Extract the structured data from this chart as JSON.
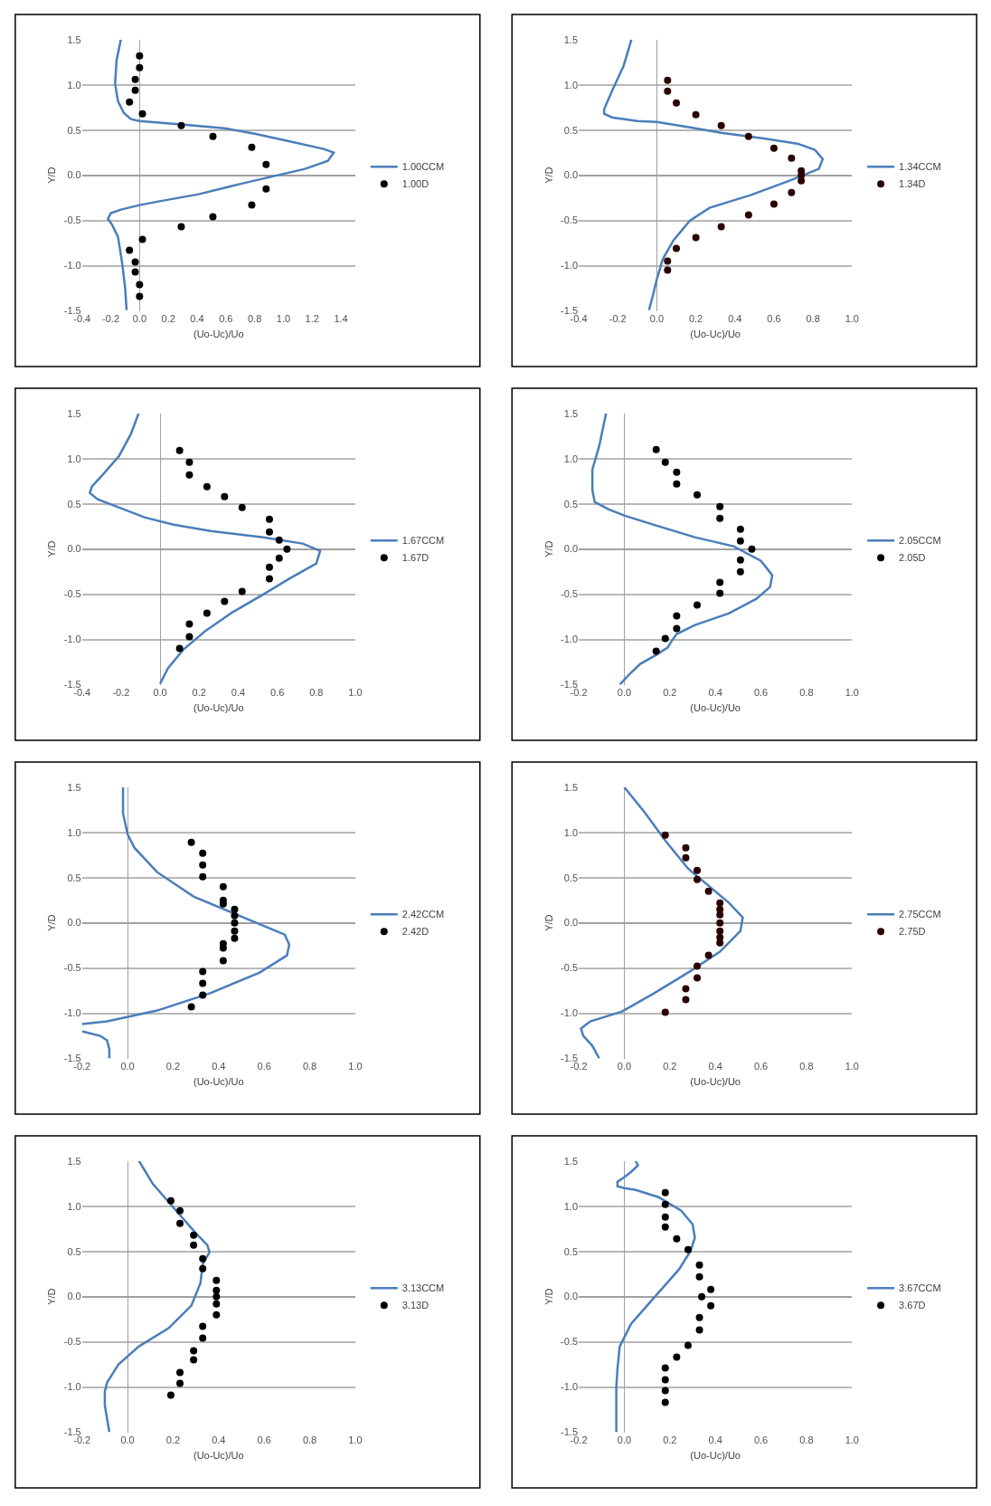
{
  "chart_data": [
    {
      "type": "line",
      "xlabel": "(Uo-Uc)/Uo",
      "ylabel": "Y/D",
      "grid": "y",
      "legend": "right",
      "xlim": [
        -0.4,
        1.5
      ],
      "xticks": [
        {
          "value": -0.4,
          "label": "-0.4"
        },
        {
          "value": -0.2,
          "label": "-0.2"
        },
        {
          "value": 0,
          "label": "0.0"
        },
        {
          "value": 0.2,
          "label": "0.2"
        },
        {
          "value": 0.4,
          "label": "0.4"
        },
        {
          "value": 0.6,
          "label": "0.6"
        },
        {
          "value": 0.8,
          "label": "0.8"
        },
        {
          "value": 1,
          "label": "1.0"
        },
        {
          "value": 1.2,
          "label": "1.2"
        },
        {
          "value": 1.4,
          "label": "1.4"
        }
      ],
      "ylim": [
        -1.5,
        1.5
      ],
      "yticks": [
        {
          "value": -1.5,
          "label": "-1.5"
        },
        {
          "value": -1,
          "label": "-1.0"
        },
        {
          "value": -0.5,
          "label": "-0.5"
        },
        {
          "value": 0,
          "label": "0.0"
        },
        {
          "value": 0.5,
          "label": "0.5"
        },
        {
          "value": 1,
          "label": "1.0"
        },
        {
          "value": 1.5,
          "label": "1.5"
        }
      ],
      "series": [
        {
          "type": "line",
          "name": "1.00CCM",
          "color": "#4a7ebb",
          "line_style": "solid",
          "x": [
            -0.13,
            -0.16,
            -0.17,
            -0.15,
            -0.11,
            -0.06,
            0,
            0.31,
            0.59,
            0.8,
            1.06,
            1.28,
            1.35,
            1.31,
            1.15,
            0.96,
            0.69,
            0.41,
            0.13,
            0,
            -0.13,
            -0.2,
            -0.22,
            -0.19,
            -0.15,
            -0.12,
            -0.1,
            -0.09
          ],
          "values": [
            1.5,
            1.27,
            1.01,
            0.82,
            0.69,
            0.62,
            0.6,
            0.56,
            0.52,
            0.46,
            0.37,
            0.29,
            0.25,
            0.16,
            0.07,
            0,
            -0.1,
            -0.21,
            -0.29,
            -0.33,
            -0.38,
            -0.42,
            -0.48,
            -0.55,
            -0.68,
            -0.98,
            -1.25,
            -1.49
          ]
        },
        {
          "type": "scatter",
          "name": "1.00D",
          "color": "#000000",
          "marker": "circle",
          "x": [
            0,
            0,
            -0.03,
            -0.03,
            -0.07,
            0.02,
            0.29,
            0.51,
            0.78,
            0.88,
            0.88,
            0.78,
            0.51,
            0.29,
            0.02,
            -0.07,
            -0.03,
            -0.03,
            0,
            0
          ],
          "values": [
            1.32,
            1.19,
            1.06,
            0.94,
            0.81,
            0.68,
            0.55,
            0.43,
            0.31,
            0.12,
            -0.15,
            -0.33,
            -0.46,
            -0.57,
            -0.71,
            -0.83,
            -0.96,
            -1.07,
            -1.21,
            -1.34
          ]
        }
      ]
    },
    {
      "type": "line",
      "xlabel": "(Uo-Uc)/Uo",
      "ylabel": "Y/D",
      "grid": "y",
      "legend": "right",
      "xlim": [
        -0.4,
        1.0
      ],
      "xticks": [
        {
          "value": -0.4,
          "label": "-0.4"
        },
        {
          "value": -0.2,
          "label": "-0.2"
        },
        {
          "value": 0,
          "label": "0.0"
        },
        {
          "value": 0.2,
          "label": "0.2"
        },
        {
          "value": 0.4,
          "label": "0.4"
        },
        {
          "value": 0.6,
          "label": "0.6"
        },
        {
          "value": 0.8,
          "label": "0.8"
        },
        {
          "value": 1,
          "label": "1.0"
        }
      ],
      "ylim": [
        -1.5,
        1.5
      ],
      "yticks": [
        {
          "value": -1.5,
          "label": "-1.5"
        },
        {
          "value": -1,
          "label": "-1.0"
        },
        {
          "value": -0.5,
          "label": "-0.5"
        },
        {
          "value": 0,
          "label": "0.0"
        },
        {
          "value": 0.5,
          "label": "0.5"
        },
        {
          "value": 1,
          "label": "1.0"
        },
        {
          "value": 1.5,
          "label": "1.5"
        }
      ],
      "series": [
        {
          "type": "line",
          "name": "1.34CCM",
          "color": "#4a7ebb",
          "line_style": "solid",
          "x": [
            -0.13,
            -0.17,
            -0.23,
            -0.27,
            -0.27,
            -0.23,
            -0.1,
            0,
            0.17,
            0.33,
            0.54,
            0.72,
            0.81,
            0.85,
            0.83,
            0.68,
            0.48,
            0.27,
            0.17,
            0.085,
            0.03,
            0,
            -0.02,
            -0.04
          ],
          "values": [
            1.5,
            1.21,
            0.93,
            0.73,
            0.68,
            0.64,
            0.6,
            0.59,
            0.53,
            0.47,
            0.41,
            0.35,
            0.28,
            0.18,
            0.07,
            -0.06,
            -0.22,
            -0.36,
            -0.5,
            -0.72,
            -0.93,
            -1.15,
            -1.33,
            -1.49
          ]
        },
        {
          "type": "scatter",
          "name": "1.34D",
          "color": "#2b0000",
          "marker": "circle",
          "x": [
            0.055,
            0.055,
            0.1,
            0.2,
            0.33,
            0.47,
            0.6,
            0.69,
            0.74,
            0.74,
            0.74,
            0.69,
            0.6,
            0.47,
            0.33,
            0.2,
            0.1,
            0.055,
            0.055
          ],
          "values": [
            1.05,
            0.93,
            0.8,
            0.67,
            0.55,
            0.43,
            0.3,
            0.19,
            0.05,
            0,
            -0.06,
            -0.19,
            -0.32,
            -0.44,
            -0.57,
            -0.69,
            -0.81,
            -0.95,
            -1.05
          ]
        }
      ]
    },
    {
      "type": "line",
      "xlabel": "(Uo-Uc)/Uo",
      "ylabel": "Y/D",
      "grid": "y",
      "legend": "right",
      "xlim": [
        -0.4,
        1.0
      ],
      "xticks": [
        {
          "value": -0.4,
          "label": "-0.4"
        },
        {
          "value": -0.2,
          "label": "-0.2"
        },
        {
          "value": 0,
          "label": "0.0"
        },
        {
          "value": 0.2,
          "label": "0.2"
        },
        {
          "value": 0.4,
          "label": "0.4"
        },
        {
          "value": 0.6,
          "label": "0.6"
        },
        {
          "value": 0.8,
          "label": "0.8"
        },
        {
          "value": 1,
          "label": "1.0"
        }
      ],
      "ylim": [
        -1.5,
        1.5
      ],
      "yticks": [
        {
          "value": -1.5,
          "label": "-1.5"
        },
        {
          "value": -1,
          "label": "-1.0"
        },
        {
          "value": -0.5,
          "label": "-0.5"
        },
        {
          "value": 0,
          "label": "0.0"
        },
        {
          "value": 0.5,
          "label": "0.5"
        },
        {
          "value": 1,
          "label": "1.0"
        },
        {
          "value": 1.5,
          "label": "1.5"
        }
      ],
      "series": [
        {
          "type": "line",
          "name": "1.67CCM",
          "color": "#4a7ebb",
          "line_style": "solid",
          "x": [
            -0.11,
            -0.15,
            -0.21,
            -0.29,
            -0.35,
            -0.36,
            -0.32,
            -0.2,
            -0.08,
            0.07,
            0.26,
            0.53,
            0.73,
            0.82,
            0.8,
            0.66,
            0.53,
            0.37,
            0.23,
            0.12,
            0.04,
            0
          ],
          "values": [
            1.5,
            1.27,
            1.03,
            0.83,
            0.69,
            0.62,
            0.55,
            0.45,
            0.35,
            0.27,
            0.2,
            0.13,
            0.06,
            -0.02,
            -0.16,
            -0.33,
            -0.5,
            -0.7,
            -0.91,
            -1.11,
            -1.32,
            -1.49
          ]
        },
        {
          "type": "scatter",
          "name": "1.67D",
          "color": "#000000",
          "marker": "circle",
          "x": [
            0.1,
            0.15,
            0.15,
            0.24,
            0.33,
            0.42,
            0.56,
            0.56,
            0.61,
            0.65,
            0.61,
            0.56,
            0.56,
            0.42,
            0.33,
            0.24,
            0.15,
            0.15,
            0.1
          ],
          "values": [
            1.09,
            0.96,
            0.82,
            0.69,
            0.58,
            0.46,
            0.33,
            0.19,
            0.1,
            0,
            -0.1,
            -0.2,
            -0.33,
            -0.47,
            -0.58,
            -0.71,
            -0.83,
            -0.97,
            -1.1
          ]
        }
      ]
    },
    {
      "type": "line",
      "xlabel": "(Uo-Uc)/Uo",
      "ylabel": "Y/D",
      "grid": "y",
      "legend": "right",
      "xlim": [
        -0.2,
        1.0
      ],
      "xticks": [
        {
          "value": -0.2,
          "label": "-0.2"
        },
        {
          "value": 0,
          "label": "0.0"
        },
        {
          "value": 0.2,
          "label": "0.2"
        },
        {
          "value": 0.4,
          "label": "0.4"
        },
        {
          "value": 0.6,
          "label": "0.6"
        },
        {
          "value": 0.8,
          "label": "0.8"
        },
        {
          "value": 1,
          "label": "1.0"
        }
      ],
      "ylim": [
        -1.5,
        1.5
      ],
      "yticks": [
        {
          "value": -1.5,
          "label": "-1.5"
        },
        {
          "value": -1,
          "label": "-1.0"
        },
        {
          "value": -0.5,
          "label": "-0.5"
        },
        {
          "value": 0,
          "label": "0.0"
        },
        {
          "value": 0.5,
          "label": "0.5"
        },
        {
          "value": 1,
          "label": "1.0"
        },
        {
          "value": 1.5,
          "label": "1.5"
        }
      ],
      "series": [
        {
          "type": "line",
          "name": "2.05CCM",
          "color": "#4a7ebb",
          "line_style": "solid",
          "x": [
            -0.08,
            -0.11,
            -0.14,
            -0.14,
            -0.13,
            -0.07,
            0,
            0.14,
            0.31,
            0.48,
            0.6,
            0.65,
            0.64,
            0.58,
            0.46,
            0.31,
            0.23,
            0.21,
            0.19,
            0.14,
            0.07,
            0.02,
            -0.02
          ],
          "values": [
            1.5,
            1.14,
            0.88,
            0.65,
            0.52,
            0.44,
            0.37,
            0.26,
            0.13,
            0.03,
            -0.13,
            -0.29,
            -0.42,
            -0.55,
            -0.71,
            -0.84,
            -0.94,
            -1.01,
            -1.09,
            -1.17,
            -1.27,
            -1.39,
            -1.5
          ]
        },
        {
          "type": "scatter",
          "name": "2.05D",
          "color": "#000000",
          "marker": "circle",
          "x": [
            0.14,
            0.18,
            0.23,
            0.23,
            0.32,
            0.42,
            0.42,
            0.51,
            0.51,
            0.56,
            0.51,
            0.51,
            0.42,
            0.42,
            0.32,
            0.23,
            0.23,
            0.18,
            0.14
          ],
          "values": [
            1.1,
            0.96,
            0.85,
            0.72,
            0.6,
            0.47,
            0.34,
            0.22,
            0.09,
            0,
            -0.12,
            -0.25,
            -0.37,
            -0.49,
            -0.62,
            -0.74,
            -0.88,
            -0.99,
            -1.13
          ]
        }
      ]
    },
    {
      "type": "line",
      "xlabel": "(Uo-Uc)/Uo",
      "ylabel": "Y/D",
      "grid": "y",
      "legend": "right",
      "xlim": [
        -0.2,
        1.0
      ],
      "xticks": [
        {
          "value": -0.2,
          "label": "-0.2"
        },
        {
          "value": 0,
          "label": "0.0"
        },
        {
          "value": 0.2,
          "label": "0.2"
        },
        {
          "value": 0.4,
          "label": "0.4"
        },
        {
          "value": 0.6,
          "label": "0.6"
        },
        {
          "value": 0.8,
          "label": "0.8"
        },
        {
          "value": 1,
          "label": "1.0"
        }
      ],
      "ylim": [
        -1.5,
        1.5
      ],
      "yticks": [
        {
          "value": -1.5,
          "label": "-1.5"
        },
        {
          "value": -1,
          "label": "-1.0"
        },
        {
          "value": -0.5,
          "label": "-0.5"
        },
        {
          "value": 0,
          "label": "0.0"
        },
        {
          "value": 0.5,
          "label": "0.5"
        },
        {
          "value": 1,
          "label": "1.0"
        },
        {
          "value": 1.5,
          "label": "1.5"
        }
      ],
      "series": [
        {
          "type": "line",
          "name": "2.42CCM",
          "color": "#4a7ebb",
          "line_style": "solid",
          "x": [
            -0.02,
            -0.02,
            0,
            0.03,
            0.13,
            0.29,
            0.47,
            0.69,
            0.71,
            0.7,
            0.58,
            0.36,
            0.13,
            -0.09,
            -0.2,
            null,
            -0.2,
            -0.12,
            -0.09,
            -0.08,
            -0.08
          ],
          "values": [
            1.5,
            1.21,
            0.98,
            0.83,
            0.56,
            0.29,
            0.1,
            -0.13,
            -0.24,
            -0.36,
            -0.55,
            -0.78,
            -0.97,
            -1.09,
            -1.12,
            null,
            -1.2,
            -1.25,
            -1.3,
            -1.4,
            -1.5
          ]
        },
        {
          "type": "scatter",
          "name": "2.42D",
          "color": "#000000",
          "marker": "circle",
          "x": [
            0.28,
            0.33,
            0.33,
            0.33,
            0.42,
            0.42,
            0.42,
            0.47,
            0.47,
            0.47,
            0.47,
            0.47,
            0.42,
            0.42,
            0.42,
            0.33,
            0.33,
            0.33,
            0.28
          ],
          "values": [
            0.89,
            0.77,
            0.64,
            0.51,
            0.4,
            0.25,
            0.21,
            0.15,
            0.08,
            0,
            -0.09,
            -0.17,
            -0.23,
            -0.28,
            -0.42,
            -0.54,
            -0.67,
            -0.8,
            -0.93
          ]
        }
      ]
    },
    {
      "type": "line",
      "xlabel": "(Uo-Uc)/Uo",
      "ylabel": "Y/D",
      "grid": "y",
      "legend": "right",
      "xlim": [
        -0.2,
        1.0
      ],
      "xticks": [
        {
          "value": -0.2,
          "label": "-0.2"
        },
        {
          "value": 0,
          "label": "0.0"
        },
        {
          "value": 0.2,
          "label": "0.2"
        },
        {
          "value": 0.4,
          "label": "0.4"
        },
        {
          "value": 0.6,
          "label": "0.6"
        },
        {
          "value": 0.8,
          "label": "0.8"
        },
        {
          "value": 1,
          "label": "1.0"
        }
      ],
      "ylim": [
        -1.5,
        1.5
      ],
      "yticks": [
        {
          "value": -1.5,
          "label": "-1.5"
        },
        {
          "value": -1,
          "label": "-1.0"
        },
        {
          "value": -0.5,
          "label": "-0.5"
        },
        {
          "value": 0,
          "label": "0.0"
        },
        {
          "value": 0.5,
          "label": "0.5"
        },
        {
          "value": 1,
          "label": "1.0"
        },
        {
          "value": 1.5,
          "label": "1.5"
        }
      ],
      "series": [
        {
          "type": "line",
          "name": "2.75CCM",
          "color": "#4a7ebb",
          "line_style": "solid",
          "x": [
            0,
            0.09,
            0.18,
            0.28,
            0.37,
            0.46,
            0.52,
            0.51,
            0.42,
            0.28,
            0.13,
            -0.01,
            -0.15,
            -0.19,
            -0.18,
            -0.14,
            -0.11
          ],
          "values": [
            1.5,
            1.22,
            0.91,
            0.6,
            0.41,
            0.22,
            0.06,
            -0.09,
            -0.32,
            -0.55,
            -0.78,
            -0.98,
            -1.09,
            -1.17,
            -1.25,
            -1.36,
            -1.5
          ]
        },
        {
          "type": "scatter",
          "name": "2.75D",
          "color": "#2b0000",
          "marker": "circle",
          "x": [
            0.18,
            0.27,
            0.27,
            0.32,
            0.32,
            0.37,
            0.42,
            0.42,
            0.42,
            0.42,
            0.42,
            0.42,
            0.42,
            0.37,
            0.32,
            0.32,
            0.27,
            0.27,
            0.18
          ],
          "values": [
            0.97,
            0.83,
            0.72,
            0.58,
            0.48,
            0.35,
            0.22,
            0.15,
            0.09,
            0,
            -0.09,
            -0.16,
            -0.22,
            -0.36,
            -0.48,
            -0.61,
            -0.73,
            -0.85,
            -0.99
          ]
        }
      ]
    },
    {
      "type": "line",
      "xlabel": "(Uo-Uc)/Uo",
      "ylabel": "Y/D",
      "grid": "y",
      "legend": "right",
      "xlim": [
        -0.2,
        1.0
      ],
      "xticks": [
        {
          "value": -0.2,
          "label": "-0.2"
        },
        {
          "value": 0,
          "label": "0.0"
        },
        {
          "value": 0.2,
          "label": "0.2"
        },
        {
          "value": 0.4,
          "label": "0.4"
        },
        {
          "value": 0.6,
          "label": "0.6"
        },
        {
          "value": 0.8,
          "label": "0.8"
        },
        {
          "value": 1,
          "label": "1.0"
        }
      ],
      "ylim": [
        -1.5,
        1.5
      ],
      "yticks": [
        {
          "value": -1.5,
          "label": "-1.5"
        },
        {
          "value": -1,
          "label": "-1.0"
        },
        {
          "value": -0.5,
          "label": "-0.5"
        },
        {
          "value": 0,
          "label": "0.0"
        },
        {
          "value": 0.5,
          "label": "0.5"
        },
        {
          "value": 1,
          "label": "1.0"
        },
        {
          "value": 1.5,
          "label": "1.5"
        }
      ],
      "series": [
        {
          "type": "line",
          "name": "3.13CCM",
          "color": "#4a7ebb",
          "line_style": "solid",
          "x": [
            0.05,
            0.11,
            0.21,
            0.3,
            0.35,
            0.36,
            0.33,
            0.32,
            0.28,
            0.18,
            0.05,
            -0.04,
            -0.09,
            -0.1,
            -0.1,
            -0.08
          ],
          "values": [
            1.5,
            1.25,
            0.96,
            0.7,
            0.57,
            0.49,
            0.36,
            0.15,
            -0.1,
            -0.35,
            -0.55,
            -0.75,
            -0.95,
            -1.05,
            -1.2,
            -1.5
          ]
        },
        {
          "type": "scatter",
          "name": "3.13D",
          "color": "#000000",
          "marker": "circle",
          "x": [
            0.19,
            0.23,
            0.23,
            0.29,
            0.29,
            0.33,
            0.33,
            0.39,
            0.39,
            0.39,
            0.39,
            0.39,
            0.33,
            0.33,
            0.29,
            0.29,
            0.23,
            0.23,
            0.19
          ],
          "values": [
            1.06,
            0.95,
            0.81,
            0.68,
            0.57,
            0.42,
            0.31,
            0.18,
            0.07,
            0,
            -0.08,
            -0.2,
            -0.33,
            -0.46,
            -0.6,
            -0.7,
            -0.84,
            -0.96,
            -1.09
          ]
        }
      ]
    },
    {
      "type": "line",
      "xlabel": "(Uo-Uc)/Uo",
      "ylabel": "Y/D",
      "grid": "y",
      "legend": "right",
      "xlim": [
        -0.2,
        1.0
      ],
      "xticks": [
        {
          "value": -0.2,
          "label": "-0.2"
        },
        {
          "value": 0,
          "label": "0.0"
        },
        {
          "value": 0.2,
          "label": "0.2"
        },
        {
          "value": 0.4,
          "label": "0.4"
        },
        {
          "value": 0.6,
          "label": "0.6"
        },
        {
          "value": 0.8,
          "label": "0.8"
        },
        {
          "value": 1,
          "label": "1.0"
        }
      ],
      "ylim": [
        -1.5,
        1.5
      ],
      "yticks": [
        {
          "value": -1.5,
          "label": "-1.5"
        },
        {
          "value": -1,
          "label": "-1.0"
        },
        {
          "value": -0.5,
          "label": "-0.5"
        },
        {
          "value": 0,
          "label": "0.0"
        },
        {
          "value": 0.5,
          "label": "0.5"
        },
        {
          "value": 1,
          "label": "1.0"
        },
        {
          "value": 1.5,
          "label": "1.5"
        }
      ],
      "series": [
        {
          "type": "line",
          "name": "3.67CCM",
          "color": "#4a7ebb",
          "line_style": "solid",
          "x": [
            0.05,
            0.06,
            0.03,
            0,
            -0.03,
            -0.03,
            0,
            0.05,
            0.15,
            0.25,
            0.3,
            0.31,
            0.29,
            0.24,
            0.17,
            0.1,
            0.03,
            -0.02,
            -0.03,
            -0.035,
            -0.035
          ],
          "values": [
            1.5,
            1.45,
            1.38,
            1.32,
            1.27,
            1.22,
            1.2,
            1.18,
            1.1,
            0.95,
            0.8,
            0.65,
            0.5,
            0.3,
            0.1,
            -0.1,
            -0.3,
            -0.55,
            -0.8,
            -1.0,
            -1.5
          ]
        },
        {
          "type": "scatter",
          "name": "3.67D",
          "color": "#000000",
          "marker": "circle",
          "x": [
            0.18,
            0.18,
            0.18,
            0.18,
            0.23,
            0.28,
            0.33,
            0.33,
            0.38,
            0.34,
            0.38,
            0.33,
            0.33,
            0.28,
            0.23,
            0.18,
            0.18,
            0.18,
            0.18
          ],
          "values": [
            1.15,
            1.02,
            0.88,
            0.77,
            0.64,
            0.52,
            0.35,
            0.22,
            0.08,
            0,
            -0.1,
            -0.23,
            -0.37,
            -0.54,
            -0.67,
            -0.79,
            -0.92,
            -1.04,
            -1.17
          ]
        }
      ]
    }
  ]
}
